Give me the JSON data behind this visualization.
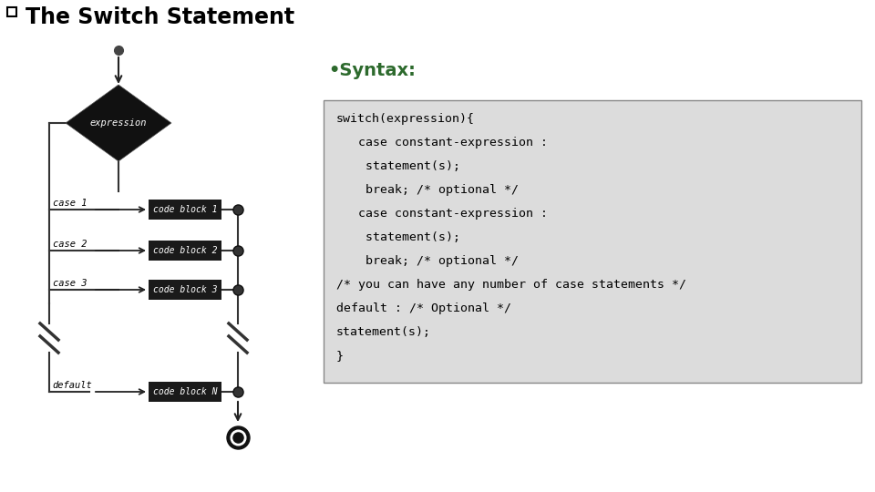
{
  "title": "The Switch Statement",
  "title_fontsize": 17,
  "bg_color": "#ffffff",
  "syntax_label": "•Syntax:",
  "syntax_color": "#2d6a2d",
  "syntax_fontsize": 14,
  "code_text_lines": [
    "switch(expression){",
    "   case constant-expression :",
    "    statement(s);",
    "    break; /* optional */",
    "   case constant-expression :",
    "    statement(s);",
    "    break; /* optional */",
    "/* you can have any number of case statements */",
    "default : /* Optional */",
    "statement(s);",
    "}"
  ],
  "code_box_color": "#dcdcdc",
  "code_box_border": "#888888",
  "code_fontsize": 9.5,
  "diagram_cases": [
    "case 1",
    "case 2",
    "case 3"
  ],
  "diagram_blocks": [
    "code block 1",
    "code block 2",
    "code block 3"
  ],
  "diagram_default": "default",
  "diagram_default_block": "code block N",
  "diamond_label": "expression",
  "diamond_color": "#111111",
  "block_color": "#1a1a1a",
  "arrow_color": "#222222",
  "line_color": "#333333"
}
